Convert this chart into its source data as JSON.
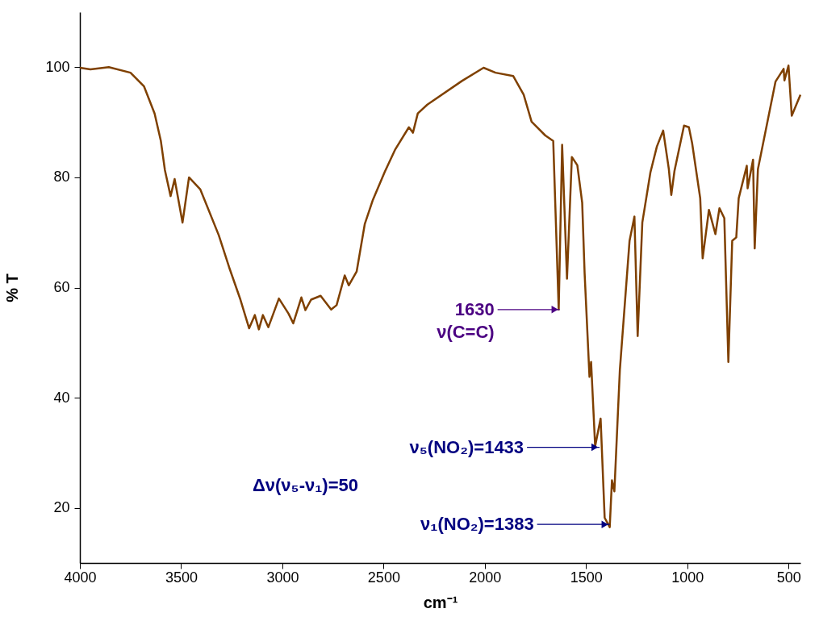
{
  "chart_data": {
    "type": "line",
    "xlabel": "cm⁻¹",
    "ylabel": "% T",
    "xlim": [
      4000,
      441
    ],
    "xticks": [
      4000,
      3500,
      3000,
      2500,
      2000,
      1500,
      1000,
      500
    ],
    "ylim": [
      10,
      110
    ],
    "yticks": [
      20,
      40,
      60,
      80,
      100
    ],
    "grid": false,
    "marker": "none",
    "line_style": "solid",
    "series": [
      {
        "color": "#7f4000",
        "x": [
          4000,
          3948,
          3857,
          3750,
          3683,
          3631,
          3600,
          3580,
          3552,
          3532,
          3493,
          3461,
          3405,
          3314,
          3263,
          3207,
          3164,
          3136,
          3116,
          3096,
          3069,
          3017,
          2970,
          2946,
          2906,
          2886,
          2858,
          2811,
          2759,
          2732,
          2692,
          2672,
          2633,
          2593,
          2553,
          2494,
          2442,
          2375,
          2355,
          2331,
          2284,
          2113,
          2006,
          1947,
          1860,
          1808,
          1769,
          1701,
          1662,
          1635,
          1618,
          1594,
          1570,
          1543,
          1519,
          1507,
          1483,
          1475,
          1455,
          1428,
          1408,
          1383,
          1372,
          1360,
          1333,
          1285,
          1261,
          1245,
          1222,
          1182,
          1150,
          1119,
          1091,
          1079,
          1063,
          1016,
          992,
          976,
          936,
          924,
          893,
          861,
          841,
          817,
          797,
          778,
          758,
          746,
          706,
          702,
          675,
          667,
          651,
          564,
          524,
          520,
          500,
          484,
          441
        ],
        "values": [
          99.9,
          99.6,
          100,
          99,
          96.5,
          91.6,
          86.6,
          81.3,
          76.6,
          79.7,
          71.8,
          80,
          77.8,
          69.5,
          63.7,
          57.8,
          52.6,
          55,
          52.4,
          55,
          52.8,
          58,
          55.3,
          53.5,
          58.2,
          55.9,
          57.8,
          58.5,
          56,
          56.8,
          62.2,
          60.4,
          62.9,
          71.5,
          75.9,
          81,
          85.1,
          89.1,
          88.1,
          91.6,
          93.2,
          97.5,
          99.9,
          99,
          98.4,
          95,
          90.1,
          87.6,
          86.6,
          56,
          85.9,
          61.6,
          83.7,
          82.2,
          75.4,
          62.6,
          43.8,
          46.5,
          31.2,
          36.2,
          18.2,
          16.5,
          25,
          23,
          45,
          68.5,
          72.9,
          51.2,
          71.8,
          80.9,
          85.6,
          88.5,
          81.5,
          76.8,
          81.2,
          89.4,
          89.1,
          86.2,
          76.2,
          65.3,
          74.1,
          69.7,
          74.4,
          72.6,
          46.5,
          68.5,
          69.1,
          76.2,
          82.1,
          78,
          83.2,
          67.1,
          81.5,
          97.4,
          99.7,
          97.6,
          100.3,
          91.2,
          95
        ]
      }
    ],
    "annotations": [
      {
        "text": "1630\nν(C=C)",
        "x": 1630,
        "y": 56
      },
      {
        "text": "ν₅(NO₂)=1433",
        "x": 1433,
        "y": 31
      },
      {
        "text": "ν₁(NO₂)=1383",
        "x": 1383,
        "y": 17
      },
      "Δν(ν₅-ν₁)=50"
    ]
  }
}
